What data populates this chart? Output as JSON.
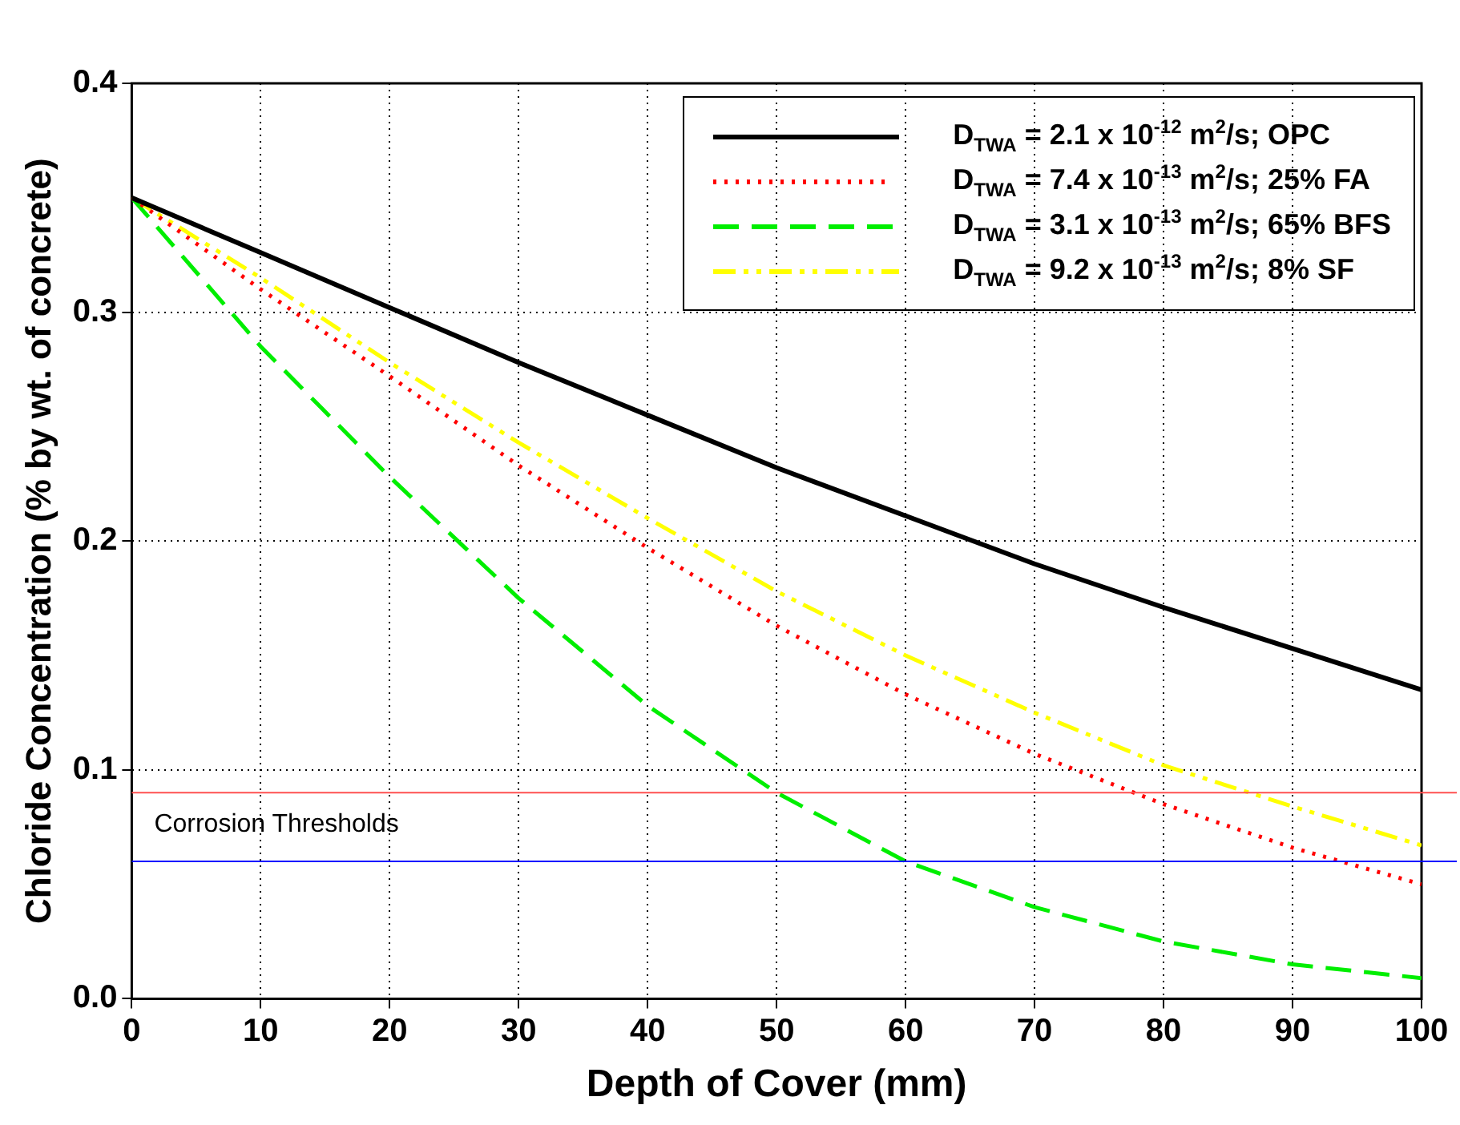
{
  "chart_data": {
    "type": "line",
    "xlabel": "Depth of Cover (mm)",
    "ylabel": "Chloride Concentration (% by wt. of concrete)",
    "x": [
      0,
      10,
      20,
      30,
      40,
      50,
      60,
      70,
      80,
      90,
      100
    ],
    "series": [
      {
        "name": "D$_{TWA}$ = 2.1 x 10$^{-12}$ m$^{2}$/s; OPC",
        "color": "#000000",
        "line_style": "solid",
        "values": [
          0.35,
          0.326,
          0.302,
          0.278,
          0.255,
          0.232,
          0.211,
          0.19,
          0.171,
          0.153,
          0.135
        ]
      },
      {
        "name": "D$_{TWA}$ = 7.4 x 10$^{-13}$ m$^{2}$/s; 25% FA",
        "color": "#ff0000",
        "line_style": "dotted",
        "values": [
          0.35,
          0.31,
          0.272,
          0.233,
          0.197,
          0.163,
          0.133,
          0.107,
          0.085,
          0.066,
          0.05
        ]
      },
      {
        "name": "D$_{TWA}$ = 3.1 x 10$^{-13}$ m$^{2}$/s; 65% BFS",
        "color": "#00ee00",
        "line_style": "dashed",
        "values": [
          0.35,
          0.285,
          0.228,
          0.175,
          0.128,
          0.09,
          0.06,
          0.04,
          0.025,
          0.015,
          0.009
        ]
      },
      {
        "name": "D$_{TWA}$ = 9.2 x 10$^{-13}$ m$^{2}$/s; 8% SF",
        "color": "#ffff00",
        "line_style": "dashdot",
        "values": [
          0.35,
          0.315,
          0.278,
          0.243,
          0.21,
          0.178,
          0.15,
          0.125,
          0.102,
          0.084,
          0.067
        ]
      }
    ],
    "xlim": [
      0,
      100
    ],
    "xticks": [
      0,
      10,
      20,
      30,
      40,
      50,
      60,
      70,
      80,
      90,
      100
    ],
    "ylim": [
      0,
      0.4
    ],
    "yticks": [
      {
        "value": 0,
        "label": "0.0"
      },
      0.1,
      0.2,
      0.3,
      0.4
    ],
    "grid": true,
    "legend": "top right",
    "marker": "none",
    "ref_lines": [
      {
        "axis": "y",
        "value": 0.09,
        "color": "#ff5050"
      },
      {
        "axis": "y",
        "value": 0.06,
        "color": "#0000ff"
      }
    ],
    "annotations": [
      "Corrosion Thresholds"
    ]
  }
}
